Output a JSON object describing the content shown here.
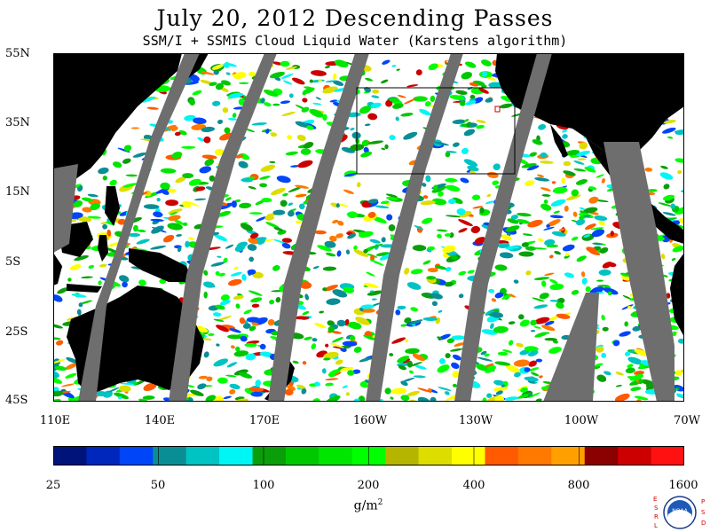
{
  "title": "July 20, 2012  Descending Passes",
  "subtitle": "SSM/I + SSMIS Cloud Liquid Water (Karstens algorithm)",
  "lat_labels": [
    "55N",
    "35N",
    "15N",
    "5S",
    "25S",
    "45S"
  ],
  "lon_labels": [
    "110E",
    "140E",
    "170E",
    "160W",
    "130W",
    "100W",
    "70W"
  ],
  "colorbar": {
    "tick_labels": [
      "25",
      "50",
      "100",
      "200",
      "400",
      "800",
      "1600"
    ],
    "units_base": "g/m",
    "units_exp": "2",
    "colors": [
      "#00137a",
      "#0027bb",
      "#0045f8",
      "#0a8e96",
      "#00c3c3",
      "#00f5f5",
      "#0a9e0a",
      "#00c800",
      "#00e600",
      "#00ff00",
      "#b5b500",
      "#dddd00",
      "#ffff00",
      "#ff5a00",
      "#ff7800",
      "#ffa000",
      "#8b0000",
      "#cc0000",
      "#ff1111"
    ]
  },
  "colors": {
    "land": "#000000",
    "missing_swath": "#6e6e6e",
    "ocean_clear": "#ffffff"
  },
  "logo": {
    "left_letters": [
      "E",
      "S",
      "R",
      "L"
    ],
    "right_letters": [
      "P",
      "S",
      "D"
    ],
    "center_text": "NOAA"
  }
}
